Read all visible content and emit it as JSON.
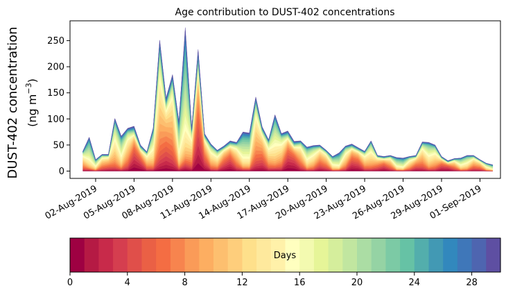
{
  "chart_data": {
    "type": "area",
    "title": "Age contribution to DUST-402 concentrations",
    "ylabel_line1": "DUST-402 concentration",
    "ylabel_line2_text": "(ng m",
    "ylabel_line2_sup": "−3",
    "ylabel_line2_close": ")",
    "ylim": [
      -14,
      288
    ],
    "y_ticks": [
      0,
      50,
      100,
      150,
      200,
      250
    ],
    "x_start_day": 0,
    "x_ticks": [
      {
        "day": 2,
        "label": "02-Aug-2019"
      },
      {
        "day": 5,
        "label": "05-Aug-2019"
      },
      {
        "day": 8,
        "label": "08-Aug-2019"
      },
      {
        "day": 11,
        "label": "11-Aug-2019"
      },
      {
        "day": 14,
        "label": "14-Aug-2019"
      },
      {
        "day": 17,
        "label": "17-Aug-2019"
      },
      {
        "day": 20,
        "label": "20-Aug-2019"
      },
      {
        "day": 23,
        "label": "23-Aug-2019"
      },
      {
        "day": 26,
        "label": "26-Aug-2019"
      },
      {
        "day": 29,
        "label": "29-Aug-2019"
      },
      {
        "day": 32,
        "label": "01-Sep-2019"
      }
    ],
    "time_days": [
      1.0,
      1.5,
      2.0,
      2.5,
      3.0,
      3.5,
      4.0,
      4.5,
      5.0,
      5.5,
      6.0,
      6.5,
      7.0,
      7.5,
      8.0,
      8.5,
      9.0,
      9.5,
      10.0,
      10.5,
      11.0,
      11.5,
      12.0,
      12.5,
      13.0,
      13.5,
      14.0,
      14.5,
      15.0,
      15.5,
      16.0,
      16.5,
      17.0,
      17.5,
      18.0,
      18.5,
      19.0,
      19.5,
      20.0,
      20.5,
      21.0,
      21.5,
      22.0,
      22.5,
      23.0,
      23.5,
      24.0,
      24.5,
      25.0,
      25.5,
      26.0,
      26.5,
      27.0,
      27.5,
      28.0,
      28.5,
      29.0,
      29.5,
      30.0,
      30.5,
      31.0,
      31.5,
      32.0,
      32.5,
      33.0
    ],
    "total": [
      38,
      65,
      22,
      32,
      32,
      101,
      67,
      82,
      86,
      50,
      37,
      83,
      251,
      140,
      185,
      95,
      275,
      82,
      233,
      72,
      52,
      40,
      48,
      58,
      55,
      75,
      73,
      142,
      85,
      60,
      108,
      72,
      77,
      57,
      58,
      46,
      49,
      50,
      40,
      28,
      35,
      48,
      52,
      45,
      38,
      58,
      30,
      28,
      30,
      26,
      25,
      28,
      30,
      56,
      55,
      50,
      28,
      20,
      24,
      25,
      30,
      30,
      22,
      15,
      12
    ],
    "age_bands": {
      "label": "Days",
      "ticks": [
        0,
        4,
        8,
        12,
        16,
        20,
        24,
        28
      ],
      "min": 0,
      "max": 30,
      "colors": [
        "#9e0142",
        "#b51a44",
        "#c82a4a",
        "#d53e4f",
        "#e04f4a",
        "#ea6045",
        "#f46d43",
        "#f7844e",
        "#fa9b58",
        "#fdae61",
        "#fdbf6f",
        "#fece7c",
        "#fee08b",
        "#fee99d",
        "#fff1a9",
        "#ffffbf",
        "#f3fab0",
        "#e6f598",
        "#d5ee9c",
        "#c1e6a0",
        "#abdda4",
        "#95d3a4",
        "#7ccaa5",
        "#66c2a5",
        "#53aeac",
        "#4299b4",
        "#3288bd",
        "#3f77b9",
        "#4e65b0",
        "#5e4fa2"
      ]
    }
  }
}
